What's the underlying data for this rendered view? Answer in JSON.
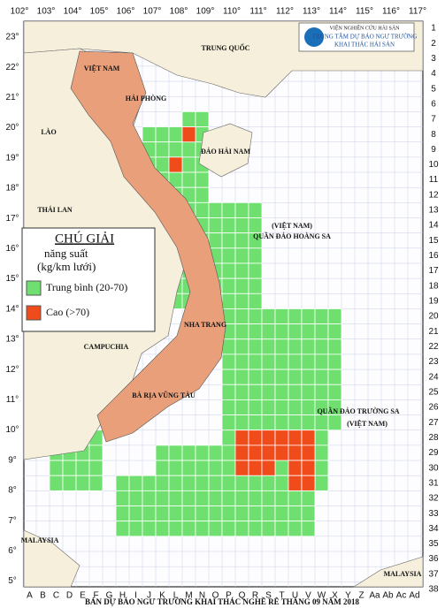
{
  "header": {
    "lines": [
      "VIỆN NGHIÊN CỨU HẢI SẢN",
      "TRUNG TÂM DỰ BÁO NGƯ TRƯỜNG",
      "KHAI THÁC HẢI SẢN"
    ]
  },
  "longitudes": [
    "102°",
    "103°",
    "104°",
    "105°",
    "106°",
    "107°",
    "108°",
    "109°",
    "110°",
    "111°",
    "112°",
    "113°",
    "114°",
    "115°",
    "116°",
    "117°"
  ],
  "latitudes": [
    "23°",
    "22°",
    "21°",
    "20°",
    "19°",
    "18°",
    "17°",
    "16°",
    "15°",
    "14°",
    "13°",
    "12°",
    "11°",
    "10°",
    "9°",
    "8°",
    "7°",
    "6°",
    "5°"
  ],
  "rows": [
    "1",
    "2",
    "3",
    "4",
    "5",
    "6",
    "7",
    "8",
    "9",
    "10",
    "11",
    "12",
    "13",
    "14",
    "15",
    "16",
    "17",
    "18",
    "19",
    "20",
    "21",
    "22",
    "23",
    "24",
    "25",
    "26",
    "27",
    "28",
    "29",
    "30",
    "31",
    "32",
    "33",
    "34",
    "35",
    "36",
    "37",
    "38"
  ],
  "columns": [
    "A",
    "B",
    "C",
    "D",
    "E",
    "F",
    "G",
    "H",
    "I",
    "J",
    "K",
    "L",
    "M",
    "N",
    "O",
    "P",
    "Q",
    "R",
    "S",
    "T",
    "U",
    "V",
    "W",
    "X",
    "Y",
    "Z",
    "Aa",
    "Ab",
    "Ac",
    "Ad"
  ],
  "places": [
    "TRUNG QUỐC",
    "VIỆT NAM",
    "HẢI PHÒNG",
    "LÀO",
    "ĐẢO HẢI NAM",
    "THÁI LAN",
    "QUẦN ĐẢO HOÀNG SA",
    "(VIỆT NAM)",
    "CAMPUCHIA",
    "NHA TRANG",
    "BÀ RỊA VŨNG TÀU",
    "QUẦN ĐẢO TRƯỜNG SA",
    "(VIỆT NAM)",
    "MALAYSIA",
    "MALAYSIA"
  ],
  "legend": {
    "title": "CHÚ GIẢI",
    "subtitle": "năng suất",
    "unit": "(kg/km lưới)",
    "items": [
      "Trung bình (20-70)",
      "Cao (>70)"
    ]
  },
  "title": "BẢN DỰ BÁO NGƯ TRƯỜNG KHAI THÁC NGHỀ RÊ THÁNG 09 NĂM 2018"
}
